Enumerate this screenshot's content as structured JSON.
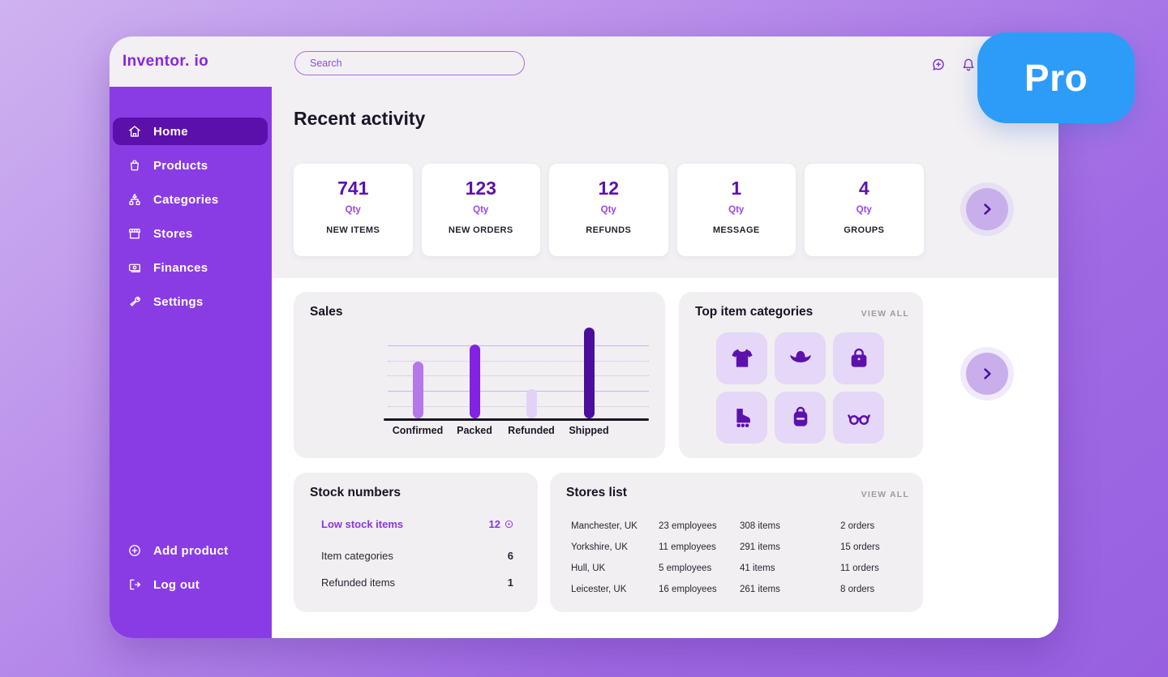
{
  "app": {
    "logo": "Inventor. io",
    "pro_badge": "Pro"
  },
  "header": {
    "search_placeholder": "Search"
  },
  "sidebar": {
    "items": [
      {
        "label": "Home",
        "icon": "home-icon",
        "active": true
      },
      {
        "label": "Products",
        "icon": "products-bag-icon",
        "active": false
      },
      {
        "label": "Categories",
        "icon": "categories-icon",
        "active": false
      },
      {
        "label": "Stores",
        "icon": "store-icon",
        "active": false
      },
      {
        "label": "Finances",
        "icon": "finances-icon",
        "active": false
      },
      {
        "label": "Settings",
        "icon": "settings-wrench-icon",
        "active": false
      }
    ],
    "footer_items": [
      {
        "label": "Add product",
        "icon": "add-circle-icon"
      },
      {
        "label": "Log out",
        "icon": "logout-icon"
      }
    ]
  },
  "recent_activity": {
    "title": "Recent activity",
    "stats": [
      {
        "value": "741",
        "unit": "Qty",
        "label": "NEW ITEMS"
      },
      {
        "value": "123",
        "unit": "Qty",
        "label": "NEW ORDERS"
      },
      {
        "value": "12",
        "unit": "Qty",
        "label": "REFUNDS"
      },
      {
        "value": "1",
        "unit": "Qty",
        "label": "MESSAGE"
      },
      {
        "value": "4",
        "unit": "Qty",
        "label": "GROUPS"
      }
    ]
  },
  "sales": {
    "title": "Sales",
    "chart_data": {
      "type": "bar",
      "categories": [
        "Confirmed",
        "Packed",
        "Refunded",
        "Shipped"
      ],
      "values": [
        63,
        82,
        32,
        100
      ],
      "title": "Sales",
      "xlabel": "",
      "ylabel": "",
      "ylim": [
        0,
        100
      ],
      "grid": true,
      "legend": false,
      "note": "no numeric axis; values estimated relative to tallest bar (Shipped) = 100",
      "bar_colors": [
        "#b478ea",
        "#8322e0",
        "#e3d2f8",
        "#4c0e9c"
      ]
    }
  },
  "top_categories": {
    "title": "Top item categories",
    "view_all": "VIEW ALL",
    "tiles": [
      "tshirt-icon",
      "hat-icon",
      "handbag-icon",
      "roller-skate-icon",
      "backpack-icon",
      "glasses-icon"
    ]
  },
  "stock": {
    "title": "Stock numbers",
    "rows": [
      {
        "label": "Low stock items",
        "value": "12",
        "highlighted": true
      },
      {
        "label": "Item categories",
        "value": "6",
        "highlighted": false
      },
      {
        "label": "Refunded items",
        "value": "1",
        "highlighted": false
      }
    ]
  },
  "stores": {
    "title": "Stores list",
    "view_all": "VIEW ALL",
    "rows": [
      {
        "city": "Manchester, UK",
        "employees": "23 employees",
        "items": "308 items",
        "orders": "2 orders"
      },
      {
        "city": "Yorkshire, UK",
        "employees": "11 employees",
        "items": "291 items",
        "orders": "15 orders"
      },
      {
        "city": "Hull, UK",
        "employees": "5 employees",
        "items": "41 items",
        "orders": "11 orders"
      },
      {
        "city": "Leicester, UK",
        "employees": "16 employees",
        "items": "261 items",
        "orders": "8 orders"
      }
    ]
  },
  "colors": {
    "sidebar_purple": "#8a3ce4",
    "active_item_purple": "#5c10ab",
    "stat_number_purple": "#5c11b0",
    "highlight_purple": "#8d35e3",
    "pro_blue": "#2d9cf8",
    "tile_bg": "#e5d7f8",
    "tile_icon": "#5c11ad"
  }
}
